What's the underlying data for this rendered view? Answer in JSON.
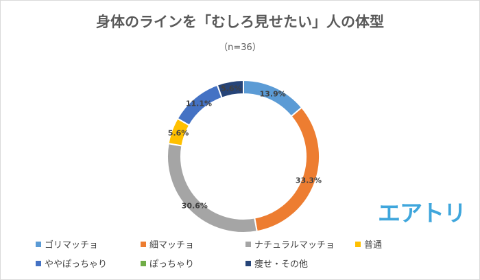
{
  "chart_data": {
    "type": "pie",
    "style": "donut",
    "title": "身体のラインを「むしろ見せたい」人の体型",
    "subtitle": "（n=36）",
    "categories": [
      "ゴリマッチョ",
      "細マッチョ",
      "ナチュラルマッチョ",
      "普通",
      "ややぽっちゃり",
      "ぽっちゃり",
      "痩せ・その他"
    ],
    "values": [
      13.9,
      33.3,
      30.6,
      5.6,
      11.1,
      0,
      5.6
    ],
    "labels": [
      "13.9%",
      "33.3%",
      "30.6%",
      "5.6%",
      "11.1%",
      "",
      "5.6%"
    ],
    "colors": [
      "#5b9bd5",
      "#ed7d31",
      "#a5a5a5",
      "#ffc000",
      "#4472c4",
      "#70ad47",
      "#264478"
    ],
    "legend_position": "bottom"
  },
  "brand": {
    "logo_text": "エアトリ"
  }
}
